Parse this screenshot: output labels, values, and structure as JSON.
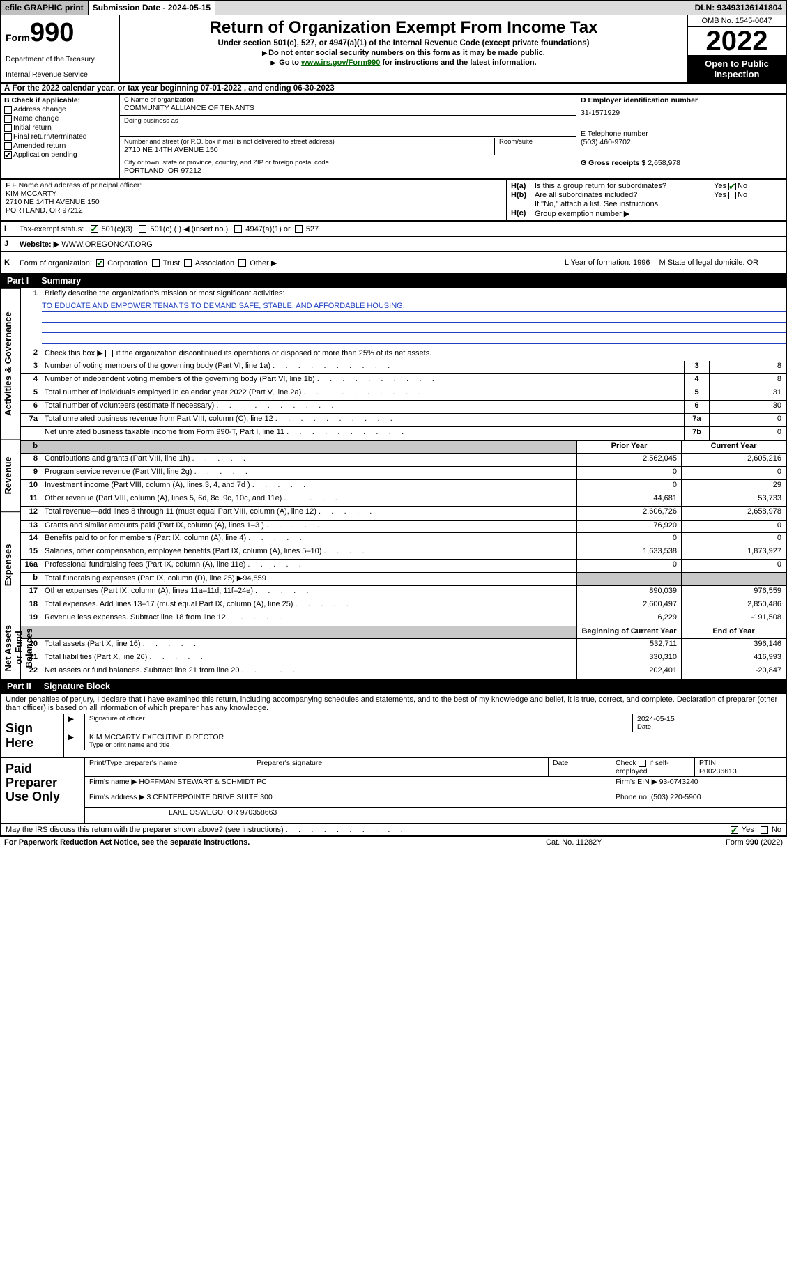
{
  "topbar": {
    "efile": "efile GRAPHIC print",
    "submission_label": "Submission Date - 2024-05-15",
    "dln_label": "DLN: 93493136141804"
  },
  "header": {
    "form_word": "Form",
    "form_num": "990",
    "dept": "Department of the Treasury",
    "irs": "Internal Revenue Service",
    "title": "Return of Organization Exempt From Income Tax",
    "sub1": "Under section 501(c), 527, or 4947(a)(1) of the Internal Revenue Code (except private foundations)",
    "sub2": "Do not enter social security numbers on this form as it may be made public.",
    "sub3_pre": "Go to ",
    "sub3_link": "www.irs.gov/Form990",
    "sub3_post": " for instructions and the latest information.",
    "omb": "OMB No. 1545-0047",
    "year": "2022",
    "open_pub": "Open to Public Inspection"
  },
  "rowA": {
    "text": "For the 2022 calendar year, or tax year beginning 07-01-2022   , and ending 06-30-2023"
  },
  "colB": {
    "label": "B Check if applicable:",
    "items": [
      "Address change",
      "Name change",
      "Initial return",
      "Final return/terminated",
      "Amended return",
      "Application pending"
    ]
  },
  "colC": {
    "name_lbl": "C Name of organization",
    "name_val": "COMMUNITY ALLIANCE OF TENANTS",
    "dba_lbl": "Doing business as",
    "street_lbl": "Number and street (or P.O. box if mail is not delivered to street address)",
    "room_lbl": "Room/suite",
    "street_val": "2710 NE 14TH AVENUE 150",
    "city_lbl": "City or town, state or province, country, and ZIP or foreign postal code",
    "city_val": "PORTLAND, OR  97212"
  },
  "colD": {
    "ein_lbl": "D Employer identification number",
    "ein_val": "31-1571929",
    "tel_lbl": "E Telephone number",
    "tel_val": "(503) 460-9702",
    "gross_lbl": "G Gross receipts $",
    "gross_val": "2,658,978"
  },
  "rowF": {
    "f_lbl": "F Name and address of principal officer:",
    "f_name": "KIM MCCARTY",
    "f_addr1": "2710 NE 14TH AVENUE 150",
    "f_addr2": "PORTLAND, OR  97212"
  },
  "rowH": {
    "ha_lbl": "H(a)",
    "ha_txt": "Is this a group return for subordinates?",
    "ha_yes": "Yes",
    "ha_no": "No",
    "hb_lbl": "H(b)",
    "hb_txt": "Are all subordinates included?",
    "hb_yes": "Yes",
    "hb_no": "No",
    "hb_note": "If \"No,\" attach a list. See instructions.",
    "hc_lbl": "H(c)",
    "hc_txt": "Group exemption number ▶"
  },
  "rowI": {
    "lbl": "I",
    "txt": "Tax-exempt status:",
    "o1": "501(c)(3)",
    "o2": "501(c) (  ) ◀ (insert no.)",
    "o3": "4947(a)(1) or",
    "o4": "527"
  },
  "rowJ": {
    "lbl": "J",
    "txt": "Website: ▶",
    "val": "WWW.OREGONCAT.ORG"
  },
  "rowK": {
    "lbl": "K",
    "txt": "Form of organization:",
    "o1": "Corporation",
    "o2": "Trust",
    "o3": "Association",
    "o4": "Other ▶",
    "l_lbl": "L Year of formation: 1996",
    "m_lbl": "M State of legal domicile: OR"
  },
  "part1": {
    "bar_a": "Part I",
    "bar_b": "Summary"
  },
  "vtabs": [
    "Activities & Governance",
    "Revenue",
    "Expenses",
    "Net Assets or Fund Balances"
  ],
  "summary": {
    "l1_a": "Briefly describe the organization's mission or most significant activities:",
    "l1_b": "TO EDUCATE AND EMPOWER TENANTS TO DEMAND SAFE, STABLE, AND AFFORDABLE HOUSING.",
    "l2": "Check this box ▶        if the organization discontinued its operations or disposed of more than 25% of its net assets.",
    "rows_ag": [
      {
        "n": "3",
        "t": "Number of voting members of the governing body (Part VI, line 1a)",
        "nb": "3",
        "v": "8"
      },
      {
        "n": "4",
        "t": "Number of independent voting members of the governing body (Part VI, line 1b)",
        "nb": "4",
        "v": "8"
      },
      {
        "n": "5",
        "t": "Total number of individuals employed in calendar year 2022 (Part V, line 2a)",
        "nb": "5",
        "v": "31"
      },
      {
        "n": "6",
        "t": "Total number of volunteers (estimate if necessary)",
        "nb": "6",
        "v": "30"
      },
      {
        "n": "7a",
        "t": "Total unrelated business revenue from Part VIII, column (C), line 12",
        "nb": "7a",
        "v": "0"
      },
      {
        "n": "",
        "t": "Net unrelated business taxable income from Form 990-T, Part I, line 11",
        "nb": "7b",
        "v": "0"
      }
    ],
    "hdr_prior": "Prior Year",
    "hdr_curr": "Current Year",
    "hdr_boy": "Beginning of Current Year",
    "hdr_eoy": "End of Year",
    "rev": [
      {
        "n": "8",
        "t": "Contributions and grants (Part VIII, line 1h)",
        "p": "2,562,045",
        "c": "2,605,216"
      },
      {
        "n": "9",
        "t": "Program service revenue (Part VIII, line 2g)",
        "p": "0",
        "c": "0"
      },
      {
        "n": "10",
        "t": "Investment income (Part VIII, column (A), lines 3, 4, and 7d )",
        "p": "0",
        "c": "29"
      },
      {
        "n": "11",
        "t": "Other revenue (Part VIII, column (A), lines 5, 6d, 8c, 9c, 10c, and 11e)",
        "p": "44,681",
        "c": "53,733"
      },
      {
        "n": "12",
        "t": "Total revenue—add lines 8 through 11 (must equal Part VIII, column (A), line 12)",
        "p": "2,606,726",
        "c": "2,658,978"
      }
    ],
    "exp": [
      {
        "n": "13",
        "t": "Grants and similar amounts paid (Part IX, column (A), lines 1–3 )",
        "p": "76,920",
        "c": "0"
      },
      {
        "n": "14",
        "t": "Benefits paid to or for members (Part IX, column (A), line 4)",
        "p": "0",
        "c": "0"
      },
      {
        "n": "15",
        "t": "Salaries, other compensation, employee benefits (Part IX, column (A), lines 5–10)",
        "p": "1,633,538",
        "c": "1,873,927"
      },
      {
        "n": "16a",
        "t": "Professional fundraising fees (Part IX, column (A), line 11e)",
        "p": "0",
        "c": "0"
      },
      {
        "n": "b",
        "t": "Total fundraising expenses (Part IX, column (D), line 25) ▶94,859",
        "p": "",
        "c": "",
        "shade": true
      },
      {
        "n": "17",
        "t": "Other expenses (Part IX, column (A), lines 11a–11d, 11f–24e)",
        "p": "890,039",
        "c": "976,559"
      },
      {
        "n": "18",
        "t": "Total expenses. Add lines 13–17 (must equal Part IX, column (A), line 25)",
        "p": "2,600,497",
        "c": "2,850,486"
      },
      {
        "n": "19",
        "t": "Revenue less expenses. Subtract line 18 from line 12",
        "p": "6,229",
        "c": "-191,508"
      }
    ],
    "net": [
      {
        "n": "20",
        "t": "Total assets (Part X, line 16)",
        "p": "532,711",
        "c": "396,146"
      },
      {
        "n": "21",
        "t": "Total liabilities (Part X, line 26)",
        "p": "330,310",
        "c": "416,993"
      },
      {
        "n": "22",
        "t": "Net assets or fund balances. Subtract line 21 from line 20",
        "p": "202,401",
        "c": "-20,847"
      }
    ]
  },
  "part2": {
    "bar_a": "Part II",
    "bar_b": "Signature Block"
  },
  "declare": "Under penalties of perjury, I declare that I have examined this return, including accompanying schedules and statements, and to the best of my knowledge and belief, it is true, correct, and complete. Declaration of preparer (other than officer) is based on all information of which preparer has any knowledge.",
  "sign": {
    "here": "Sign Here",
    "sig_of_officer": "Signature of officer",
    "date_lbl": "Date",
    "date_val": "2024-05-15",
    "name_title": "KIM MCCARTY  EXECUTIVE DIRECTOR",
    "type_lbl": "Type or print name and title"
  },
  "paid": {
    "title": "Paid Preparer Use Only",
    "h1": "Print/Type preparer's name",
    "h2": "Preparer's signature",
    "h3": "Date",
    "h4a": "Check",
    "h4b": "if self-employed",
    "h5": "PTIN",
    "ptin": "P00236613",
    "firm_name_lbl": "Firm's name   ▶",
    "firm_name": "HOFFMAN STEWART & SCHMIDT PC",
    "firm_ein_lbl": "Firm's EIN ▶",
    "firm_ein": "93-0743240",
    "firm_addr_lbl": "Firm's address ▶",
    "firm_addr1": "3 CENTERPOINTE DRIVE SUITE 300",
    "firm_addr2": "LAKE OSWEGO, OR  970358663",
    "phone_lbl": "Phone no.",
    "phone": "(503) 220-5900"
  },
  "footer": {
    "discuss": "May the IRS discuss this return with the preparer shown above? (see instructions)",
    "yes": "Yes",
    "no": "No",
    "pra": "For Paperwork Reduction Act Notice, see the separate instructions.",
    "cat": "Cat. No. 11282Y",
    "form": "Form 990 (2022)"
  },
  "colors": {
    "link_green": "#006600",
    "link_blue": "#0000cc",
    "mission_blue": "#2040c0"
  }
}
